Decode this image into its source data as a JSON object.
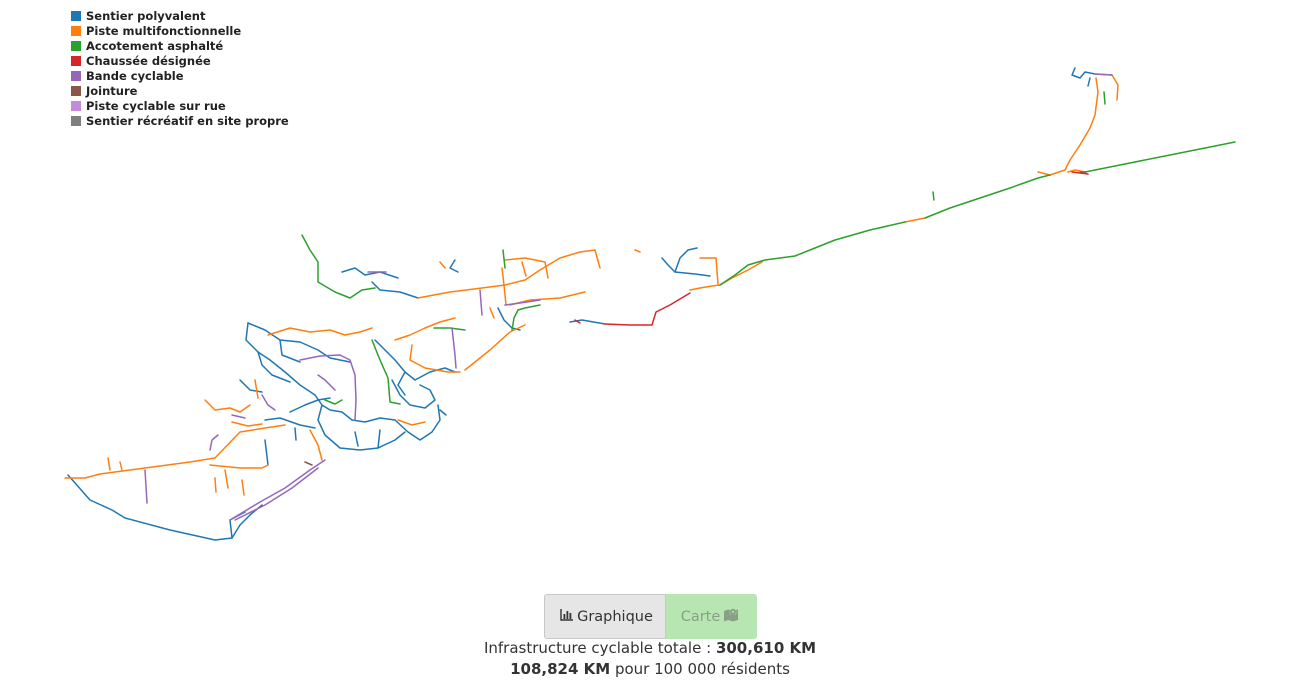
{
  "legend": {
    "items": [
      {
        "label": "Sentier polyvalent",
        "color": "#1f77b4"
      },
      {
        "label": "Piste multifonctionnelle",
        "color": "#ff7f0e"
      },
      {
        "label": "Accotement asphalté",
        "color": "#2ca02c"
      },
      {
        "label": "Chaussée désignée",
        "color": "#d62728"
      },
      {
        "label": "Bande cyclable",
        "color": "#9467bd"
      },
      {
        "label": "Jointure",
        "color": "#8c564b"
      },
      {
        "label": "Piste cyclable sur rue",
        "color": "#c38bd9"
      },
      {
        "label": "Sentier récréatif en site propre",
        "color": "#7f7f7f"
      }
    ]
  },
  "toggle": {
    "graph_label": "Graphique",
    "graph_icon": "bar-chart-icon",
    "map_label": "Carte",
    "map_icon": "map-marker-icon"
  },
  "summary": {
    "total_label": "Infrastructure cyclable totale :",
    "total_value": "300,610 KM",
    "per_capita_value": "108,824 KM",
    "per_capita_label": "pour 100 000 résidents"
  }
}
